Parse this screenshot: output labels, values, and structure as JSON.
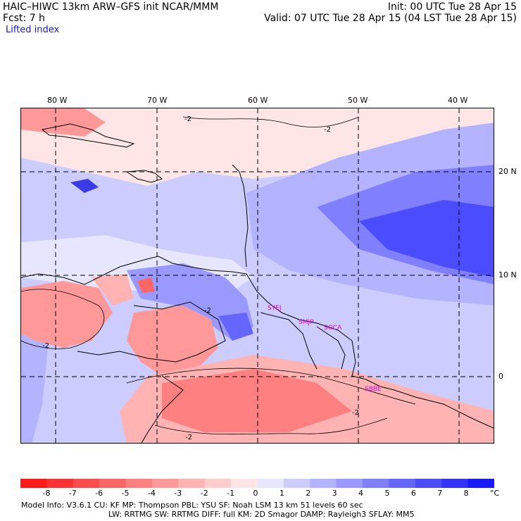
{
  "header": {
    "title_left": "HAIC–HIWC 13km ARW–GFS init    NCAR/MMM",
    "fcst_left": "Fcst:     7 h",
    "init_right": "Init: 00 UTC Tue 28 Apr 15",
    "valid_right": "Valid: 07 UTC Tue 28 Apr 15 (04 LST Tue 28 Apr 15)",
    "field_name": "Lifted index"
  },
  "map": {
    "lon_labels": [
      "80 W",
      "70 W",
      "60 W",
      "50 W",
      "40 W"
    ],
    "lat_labels": [
      "20 N",
      "10 N",
      "0"
    ],
    "contour_labels": [
      "-2",
      "-2",
      "-2",
      "-2",
      "-2",
      "-2"
    ],
    "stations": [
      "SYEJ",
      "SMJP",
      "SOCA",
      "SBBE"
    ]
  },
  "colorbar": {
    "ticks": [
      "-8",
      "-7",
      "-6",
      "-5",
      "-4",
      "-3",
      "-2",
      "-1",
      "0",
      "1",
      "2",
      "3",
      "4",
      "5",
      "6",
      "7",
      "8"
    ],
    "unit": "°C",
    "colors": [
      "#ff1a1a",
      "#ff3333",
      "#ff4c4c",
      "#ff6666",
      "#ff8080",
      "#ff9999",
      "#ffb3b3",
      "#ffcccc",
      "#ffe6e6",
      "#e6e6ff",
      "#ccccff",
      "#b3b3ff",
      "#9999ff",
      "#8080ff",
      "#6666ff",
      "#4c4cff",
      "#3333ff",
      "#1a1aff"
    ]
  },
  "footer": {
    "line1": "Model Info: V3.6.1    CU: KF      MP: Thompson     PBL: YSU       SF: Noah LSM     13 km    51 levels   60 sec",
    "line2": "LW: RRTMG    SW: RRTMG  DIFF: full    KM: 2D Smagor DAMP: Rayleigh3  SFLAY: MM5"
  },
  "colors": {
    "blue_strong": "#3a3ae6",
    "red_mid": "#ff8080",
    "station_label": "#e000e0"
  }
}
